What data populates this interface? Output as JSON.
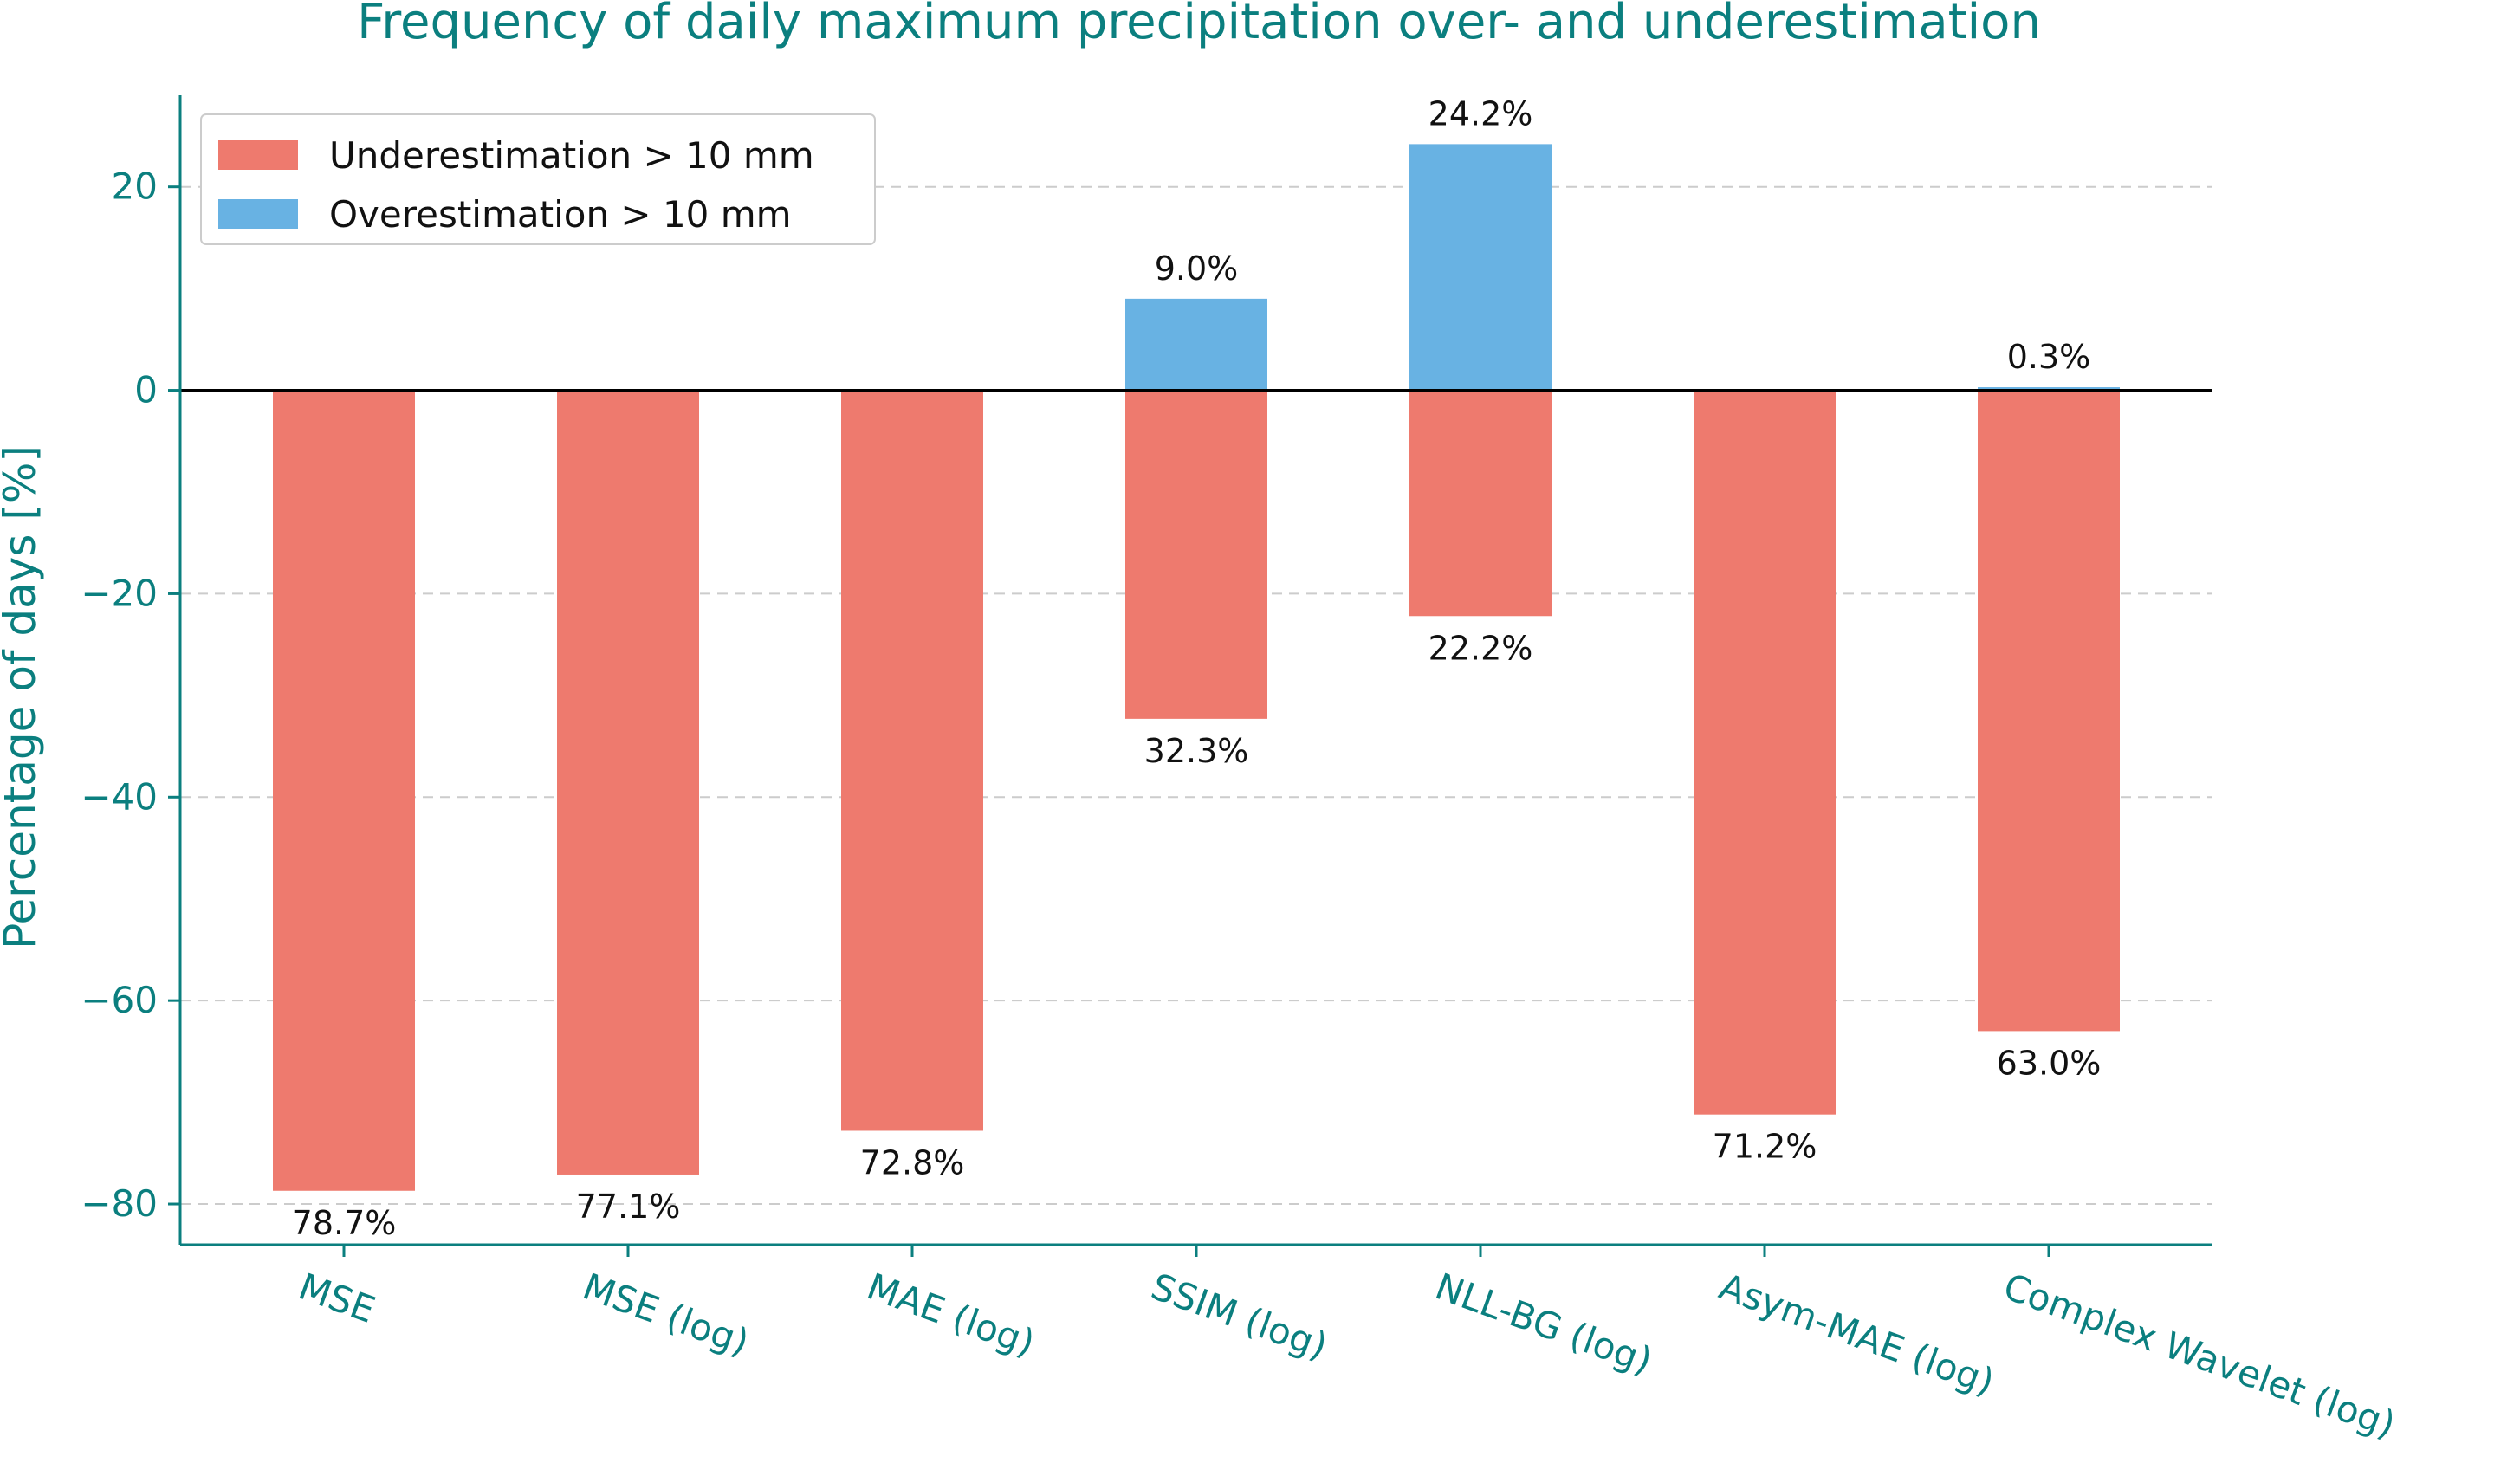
{
  "chart_data": {
    "type": "bar",
    "title": "Frequency of daily maximum precipitation over- and underestimation",
    "xlabel": "",
    "ylabel": "Percentage of days [%]",
    "ylim": [
      -84,
      29
    ],
    "yticks": [
      20,
      0,
      -20,
      -40,
      -60,
      -80
    ],
    "ytick_labels": [
      "20",
      "0",
      "−20",
      "−40",
      "−60",
      "−80"
    ],
    "grid": "y-dashed",
    "legend_position": "top-left",
    "categories": [
      "MSE",
      "MSE (log)",
      "MAE (log)",
      "SSIM (log)",
      "NLL-BG (log)",
      "Asym-MAE (log)",
      "Complex Wavelet (log)"
    ],
    "series": [
      {
        "name": "Underestimation > 10 mm",
        "color": "#ee7a6e",
        "values": [
          -78.7,
          -77.1,
          -72.8,
          -32.3,
          -22.2,
          -71.2,
          -63.0
        ],
        "labels": [
          "78.7%",
          "77.1%",
          "72.8%",
          "32.3%",
          "22.2%",
          "71.2%",
          "63.0%"
        ]
      },
      {
        "name": "Overestimation > 10 mm",
        "color": "#68b2e3",
        "values": [
          0,
          0,
          0,
          9.0,
          24.2,
          0,
          0.3
        ],
        "labels": [
          "",
          "",
          "",
          "9.0%",
          "24.2%",
          "",
          "0.3%"
        ]
      }
    ]
  }
}
